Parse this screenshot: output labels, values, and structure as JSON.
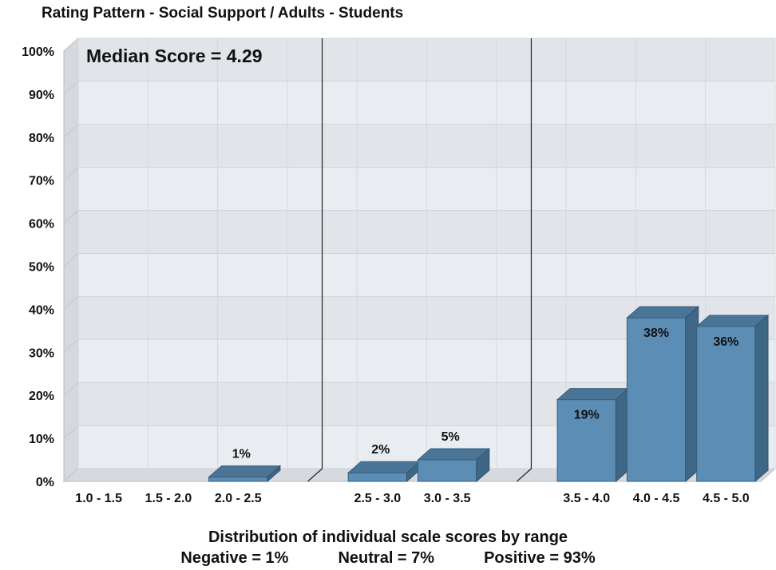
{
  "chart_data": {
    "type": "bar",
    "title": "Rating Pattern - Social Support / Adults - Students",
    "annotation": "Median Score = 4.29",
    "xlabel": "Distribution of individual scale scores by range",
    "summary": [
      "Negative = 1%",
      "Neutral = 7%",
      "Positive = 93%"
    ],
    "ylim": [
      0,
      100
    ],
    "yticks": [
      "0%",
      "10%",
      "20%",
      "30%",
      "40%",
      "50%",
      "60%",
      "70%",
      "80%",
      "90%",
      "100%"
    ],
    "categories": [
      "1.0 - 1.5",
      "1.5 - 2.0",
      "2.0 - 2.5",
      "2.5 - 3.0",
      "3.0 - 3.5",
      "3.5 - 4.0",
      "4.0 - 4.5",
      "4.5 - 5.0"
    ],
    "groups": [
      {
        "name": "Negative",
        "categories": [
          "1.0 - 1.5",
          "1.5 - 2.0",
          "2.0 - 2.5"
        ]
      },
      {
        "name": "Neutral",
        "categories": [
          "2.5 - 3.0",
          "3.0 - 3.5"
        ]
      },
      {
        "name": "Positive",
        "categories": [
          "3.5 - 4.0",
          "4.0 - 4.5",
          "4.5 - 5.0"
        ]
      }
    ],
    "values": [
      null,
      null,
      1,
      2,
      5,
      19,
      38,
      36
    ],
    "value_labels": [
      "",
      "",
      "1%",
      "2%",
      "5%",
      "19%",
      "38%",
      "36%"
    ],
    "grid": true,
    "bar_color": "#5b8db5"
  }
}
